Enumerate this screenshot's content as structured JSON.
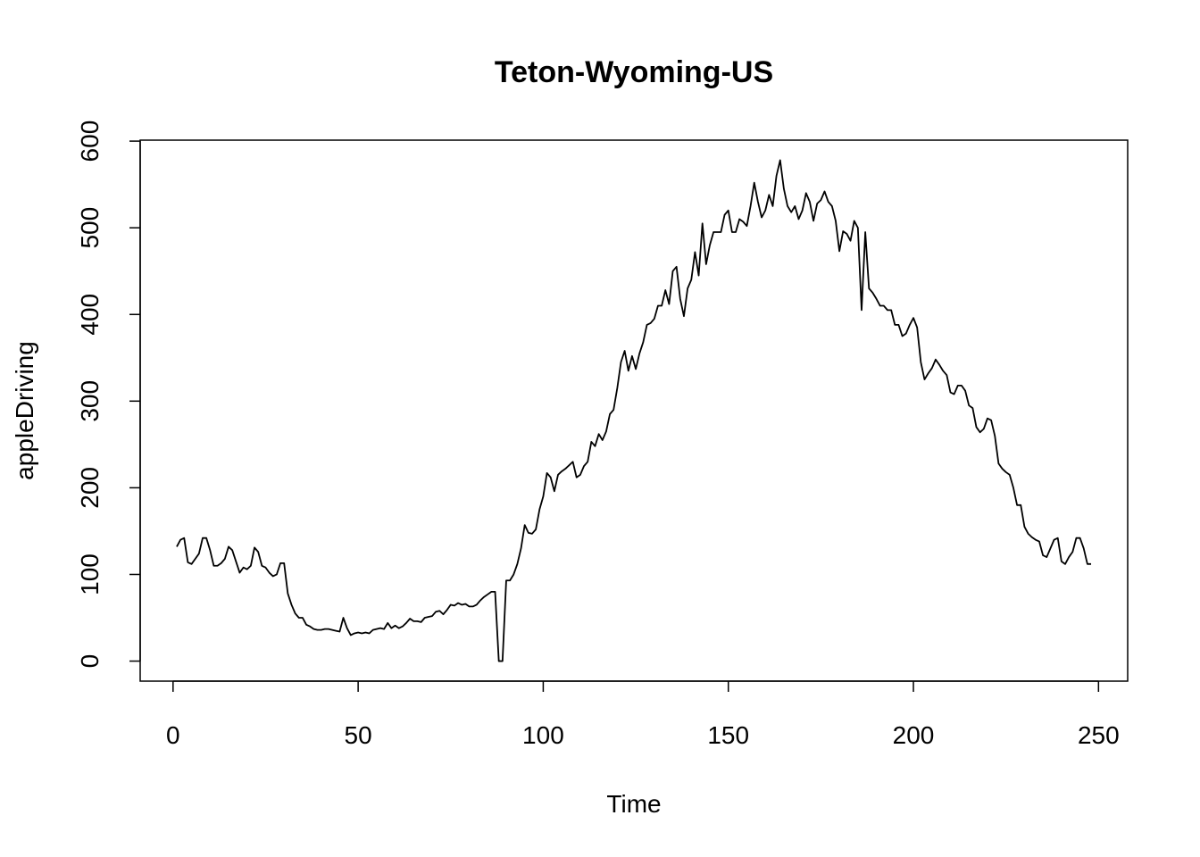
{
  "chart_data": {
    "type": "line",
    "title": "Teton-Wyoming-US",
    "xlabel": "Time",
    "ylabel": "appleDriving",
    "x": [
      1,
      2,
      3,
      4,
      5,
      6,
      7,
      8,
      9,
      10,
      11,
      12,
      13,
      14,
      15,
      16,
      17,
      18,
      19,
      20,
      21,
      22,
      23,
      24,
      25,
      26,
      27,
      28,
      29,
      30,
      31,
      32,
      33,
      34,
      35,
      36,
      37,
      38,
      39,
      40,
      41,
      42,
      43,
      44,
      45,
      46,
      47,
      48,
      49,
      50,
      51,
      52,
      53,
      54,
      55,
      56,
      57,
      58,
      59,
      60,
      61,
      62,
      63,
      64,
      65,
      66,
      67,
      68,
      69,
      70,
      71,
      72,
      73,
      74,
      75,
      76,
      77,
      78,
      79,
      80,
      81,
      82,
      83,
      84,
      85,
      86,
      87,
      88,
      89,
      90,
      91,
      92,
      93,
      94,
      95,
      96,
      97,
      98,
      99,
      100,
      101,
      102,
      103,
      104,
      105,
      106,
      107,
      108,
      109,
      110,
      111,
      112,
      113,
      114,
      115,
      116,
      117,
      118,
      119,
      120,
      121,
      122,
      123,
      124,
      125,
      126,
      127,
      128,
      129,
      130,
      131,
      132,
      133,
      134,
      135,
      136,
      137,
      138,
      139,
      140,
      141,
      142,
      143,
      144,
      145,
      146,
      147,
      148,
      149,
      150,
      151,
      152,
      153,
      154,
      155,
      156,
      157,
      158,
      159,
      160,
      161,
      162,
      163,
      164,
      165,
      166,
      167,
      168,
      169,
      170,
      171,
      172,
      173,
      174,
      175,
      176,
      177,
      178,
      179,
      180,
      181,
      182,
      183,
      184,
      185,
      186,
      187,
      188,
      189,
      190,
      191,
      192,
      193,
      194,
      195,
      196,
      197,
      198,
      199,
      200,
      201,
      202,
      203,
      204,
      205,
      206,
      207,
      208,
      209,
      210,
      211,
      212,
      213,
      214,
      215,
      216,
      217,
      218,
      219,
      220,
      221,
      222,
      223,
      224,
      225,
      226,
      227,
      228,
      229,
      230,
      231,
      232,
      233,
      234,
      235,
      236,
      237,
      238,
      239,
      240,
      241,
      242,
      243,
      244,
      245,
      246,
      247,
      248
    ],
    "series": [
      {
        "name": "appleDriving",
        "color": "#000000",
        "values": [
          132,
          140,
          142,
          114,
          112,
          118,
          124,
          142,
          142,
          128,
          110,
          110,
          113,
          118,
          132,
          128,
          115,
          102,
          108,
          106,
          110,
          131,
          126,
          110,
          108,
          102,
          98,
          100,
          113,
          113,
          78,
          65,
          55,
          50,
          50,
          42,
          40,
          37,
          36,
          36,
          37,
          37,
          36,
          35,
          34,
          50,
          38,
          30,
          32,
          33,
          32,
          33,
          32,
          36,
          37,
          38,
          37,
          44,
          38,
          41,
          38,
          40,
          44,
          49,
          46,
          46,
          45,
          50,
          51,
          52,
          57,
          58,
          54,
          59,
          65,
          64,
          67,
          65,
          66,
          63,
          63,
          65,
          70,
          74,
          77,
          80,
          80,
          0,
          0,
          93,
          93,
          100,
          112,
          130,
          157,
          148,
          147,
          152,
          175,
          190,
          217,
          212,
          196,
          215,
          219,
          222,
          226,
          230,
          212,
          215,
          225,
          230,
          253,
          248,
          262,
          255,
          265,
          285,
          290,
          315,
          345,
          358,
          335,
          352,
          337,
          355,
          368,
          388,
          390,
          395,
          410,
          410,
          428,
          412,
          450,
          455,
          418,
          398,
          430,
          440,
          472,
          445,
          505,
          458,
          480,
          495,
          495,
          495,
          515,
          520,
          495,
          495,
          510,
          507,
          502,
          525,
          552,
          530,
          512,
          520,
          538,
          525,
          560,
          578,
          545,
          525,
          518,
          525,
          510,
          520,
          540,
          530,
          508,
          528,
          532,
          542,
          530,
          525,
          508,
          473,
          496,
          493,
          485,
          508,
          500,
          405,
          495,
          430,
          425,
          418,
          410,
          410,
          405,
          405,
          388,
          388,
          375,
          378,
          388,
          396,
          385,
          345,
          325,
          332,
          338,
          348,
          342,
          335,
          330,
          310,
          308,
          318,
          318,
          312,
          295,
          292,
          270,
          264,
          268,
          280,
          278,
          260,
          228,
          222,
          218,
          215,
          200,
          180,
          180,
          155,
          147,
          143,
          140,
          138,
          122,
          120,
          130,
          140,
          142,
          115,
          112,
          120,
          126,
          142,
          142,
          130,
          112,
          112
        ]
      }
    ],
    "xlim": [
      -8.88,
      257.88
    ],
    "ylim": [
      -23.12,
      601.12
    ],
    "xticks": [
      0,
      50,
      100,
      150,
      200,
      250
    ],
    "yticks": [
      0,
      100,
      200,
      300,
      400,
      500,
      600
    ]
  }
}
